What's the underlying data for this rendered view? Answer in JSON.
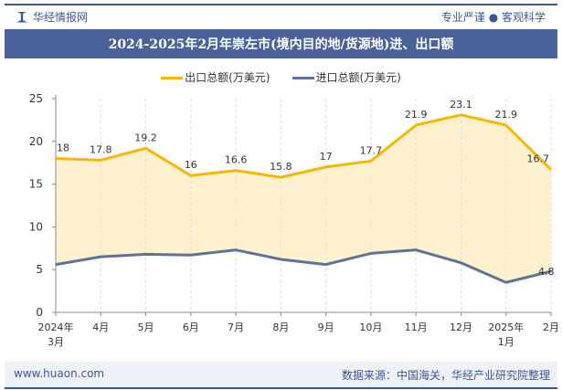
{
  "header": {
    "brand": "华经情报网",
    "slogan": "专业严谨 ● 客观科学",
    "title": "2024-2025年2月年崇左市(境内目的地/货源地)进、出口额"
  },
  "footer": {
    "website": "www.huaon.com",
    "source": "数据来源：中国海关，华经产业研究院整理"
  },
  "chart_data": {
    "type": "line",
    "title": "2024-2025年2月年崇左市(境内目的地/货源地)进、出口额",
    "categories": [
      [
        "2024年",
        "3月"
      ],
      [
        "4月"
      ],
      [
        "5月"
      ],
      [
        "6月"
      ],
      [
        "7月"
      ],
      [
        "8月"
      ],
      [
        "9月"
      ],
      [
        "10月"
      ],
      [
        "11月"
      ],
      [
        "12月"
      ],
      [
        "2025年",
        "1月"
      ],
      [
        "2月"
      ]
    ],
    "ylim": [
      0,
      25
    ],
    "yticks": [
      0,
      5,
      10,
      15,
      20,
      25
    ],
    "legend_position": "top-center",
    "series": [
      {
        "name": "出口总额(万美元)",
        "color": "#f5b800",
        "values": [
          18,
          17.8,
          19.2,
          16,
          16.6,
          15.8,
          17,
          17.7,
          21.9,
          23.1,
          21.9,
          16.7
        ],
        "labels": true
      },
      {
        "name": "进口总额(万美元)",
        "color": "#5f7299",
        "values": [
          5.6,
          6.5,
          6.8,
          6.7,
          7.3,
          6.2,
          5.6,
          6.9,
          7.3,
          5.8,
          3.5,
          4.8
        ],
        "labels": "last"
      }
    ]
  }
}
